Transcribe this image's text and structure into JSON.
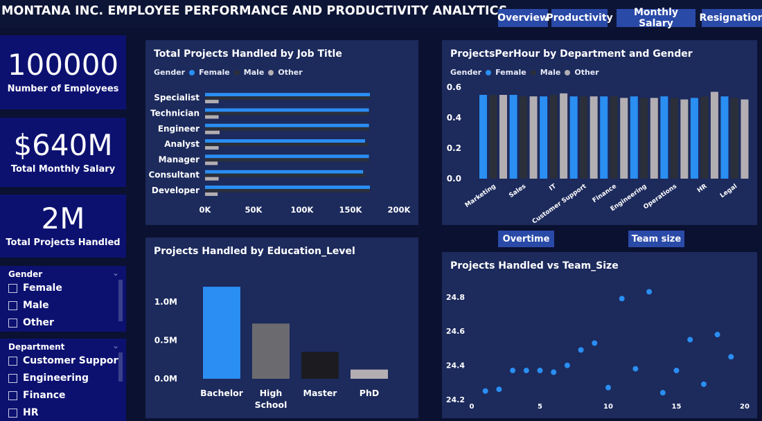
{
  "header": {
    "title": "MONTANA INC. EMPLOYEE PERFORMANCE AND PRODUCTIVITY ANALYTICS",
    "nav": [
      "Overview",
      "Productivity",
      "Monthly Salary",
      "Resignation"
    ]
  },
  "kpis": [
    {
      "value": "100000",
      "label": "Number of Employees"
    },
    {
      "value": "$640M",
      "label": "Total Monthly Salary"
    },
    {
      "value": "2M",
      "label": "Total Projects Handled"
    }
  ],
  "slicers": {
    "gender": {
      "title": "Gender",
      "items": [
        "Female",
        "Male",
        "Other"
      ]
    },
    "department": {
      "title": "Department",
      "items": [
        "Customer Support",
        "Engineering",
        "Finance",
        "HR"
      ]
    }
  },
  "buttons": {
    "overtime": "Overtime",
    "team_size": "Team size"
  },
  "colors": {
    "female": "#2a8ef2",
    "male": "#2b2f3a",
    "other": "#b3aeb2"
  },
  "chart_data": [
    {
      "type": "bar",
      "orientation": "horizontal",
      "title": "Total Projects Handled by Job Title",
      "legend_title": "Gender",
      "legend": [
        "Female",
        "Male",
        "Other"
      ],
      "categories": [
        "Specialist",
        "Technician",
        "Engineer",
        "Analyst",
        "Manager",
        "Consultant",
        "Developer"
      ],
      "series": [
        {
          "name": "Female",
          "values": [
            170000,
            169000,
            169000,
            165000,
            169000,
            163000,
            170000
          ]
        },
        {
          "name": "Male",
          "values": [
            170000,
            169000,
            169000,
            168000,
            169000,
            165000,
            170000
          ]
        },
        {
          "name": "Other",
          "values": [
            14000,
            14000,
            15000,
            14000,
            13000,
            14000,
            13000
          ]
        }
      ],
      "xlim": [
        0,
        200000
      ],
      "xticks": [
        "0K",
        "50K",
        "100K",
        "150K",
        "200K"
      ]
    },
    {
      "type": "bar",
      "title": "ProjectsPerHour by Department and Gender",
      "legend_title": "Gender",
      "legend": [
        "Female",
        "Male",
        "Other"
      ],
      "categories": [
        "Marketing",
        "Sales",
        "IT",
        "Customer Support",
        "Finance",
        "Engineering",
        "Operations",
        "HR",
        "Legal"
      ],
      "series": [
        {
          "name": "Female",
          "values": [
            0.55,
            0.55,
            0.54,
            0.54,
            0.54,
            0.54,
            0.54,
            0.53,
            0.54
          ]
        },
        {
          "name": "Male",
          "values": [
            0.55,
            0.54,
            0.55,
            0.54,
            0.54,
            0.53,
            0.53,
            0.54,
            0.53
          ]
        },
        {
          "name": "Other",
          "values": [
            0.55,
            0.54,
            0.56,
            0.54,
            0.53,
            0.53,
            0.52,
            0.57,
            0.52
          ]
        }
      ],
      "ylim": [
        0,
        0.6
      ],
      "yticks": [
        "0.0",
        "0.2",
        "0.4",
        "0.6"
      ]
    },
    {
      "type": "bar",
      "title": "Projects Handled by Education_Level",
      "categories": [
        "Bachelor",
        "High School",
        "Master",
        "PhD"
      ],
      "values": [
        1200000,
        720000,
        350000,
        120000
      ],
      "colors": [
        "#2a8ef2",
        "#6b6b6f",
        "#1b1b20",
        "#b3aeb2"
      ],
      "ylim": [
        0,
        1300000
      ],
      "yticks": [
        "0.0M",
        "0.5M",
        "1.0M"
      ]
    },
    {
      "type": "scatter",
      "title": "Projects Handled vs Team_Size",
      "x": [
        1,
        2,
        3,
        4,
        5,
        6,
        7,
        8,
        9,
        10,
        11,
        12,
        13,
        14,
        15,
        16,
        17,
        18,
        19
      ],
      "y": [
        24.25,
        24.26,
        24.37,
        24.37,
        24.37,
        24.36,
        24.4,
        24.49,
        24.53,
        24.27,
        24.79,
        24.38,
        24.83,
        24.24,
        24.37,
        24.55,
        24.29,
        24.58,
        24.45
      ],
      "xlim": [
        0,
        20
      ],
      "ylim": [
        24.18,
        24.88
      ],
      "xticks": [
        "0",
        "5",
        "10",
        "15",
        "20"
      ],
      "yticks": [
        "24.2",
        "24.4",
        "24.6",
        "24.8"
      ]
    }
  ]
}
